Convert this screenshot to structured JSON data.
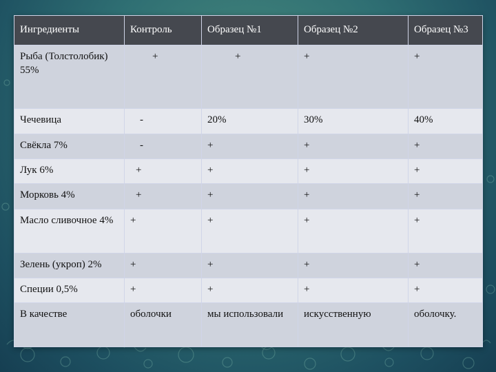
{
  "table": {
    "headers": [
      "Ингредиенты",
      "Контроль",
      "Образец №1",
      "Образец №2",
      "Образец №3"
    ],
    "rows": [
      [
        "Рыба (Толстолобик) 55%",
        "+",
        "+",
        "+",
        "+"
      ],
      [
        "Чечевица",
        "-",
        "20%",
        "30%",
        "40%"
      ],
      [
        "Свёкла 7%",
        "-",
        "+",
        "+",
        "+"
      ],
      [
        "Лук 6%",
        "+",
        "+",
        "+",
        "+"
      ],
      [
        "Морковь 4%",
        "+",
        "+",
        "+",
        "+"
      ],
      [
        "Масло сливочное 4%",
        "+",
        "+",
        "+",
        "+"
      ],
      [
        "Зелень (укроп) 2%",
        "+",
        "+",
        "+",
        "+"
      ],
      [
        "Специи 0,5%",
        "+",
        "+",
        "+",
        "+"
      ],
      [
        "В качестве",
        "оболочки",
        "мы использовали",
        "искусственную",
        "оболочку."
      ]
    ]
  },
  "colors": {
    "header_bg": "#45484f",
    "row_odd_bg": "#cfd3dd",
    "row_even_bg": "#e6e8ee",
    "background": "#2f6f73"
  }
}
